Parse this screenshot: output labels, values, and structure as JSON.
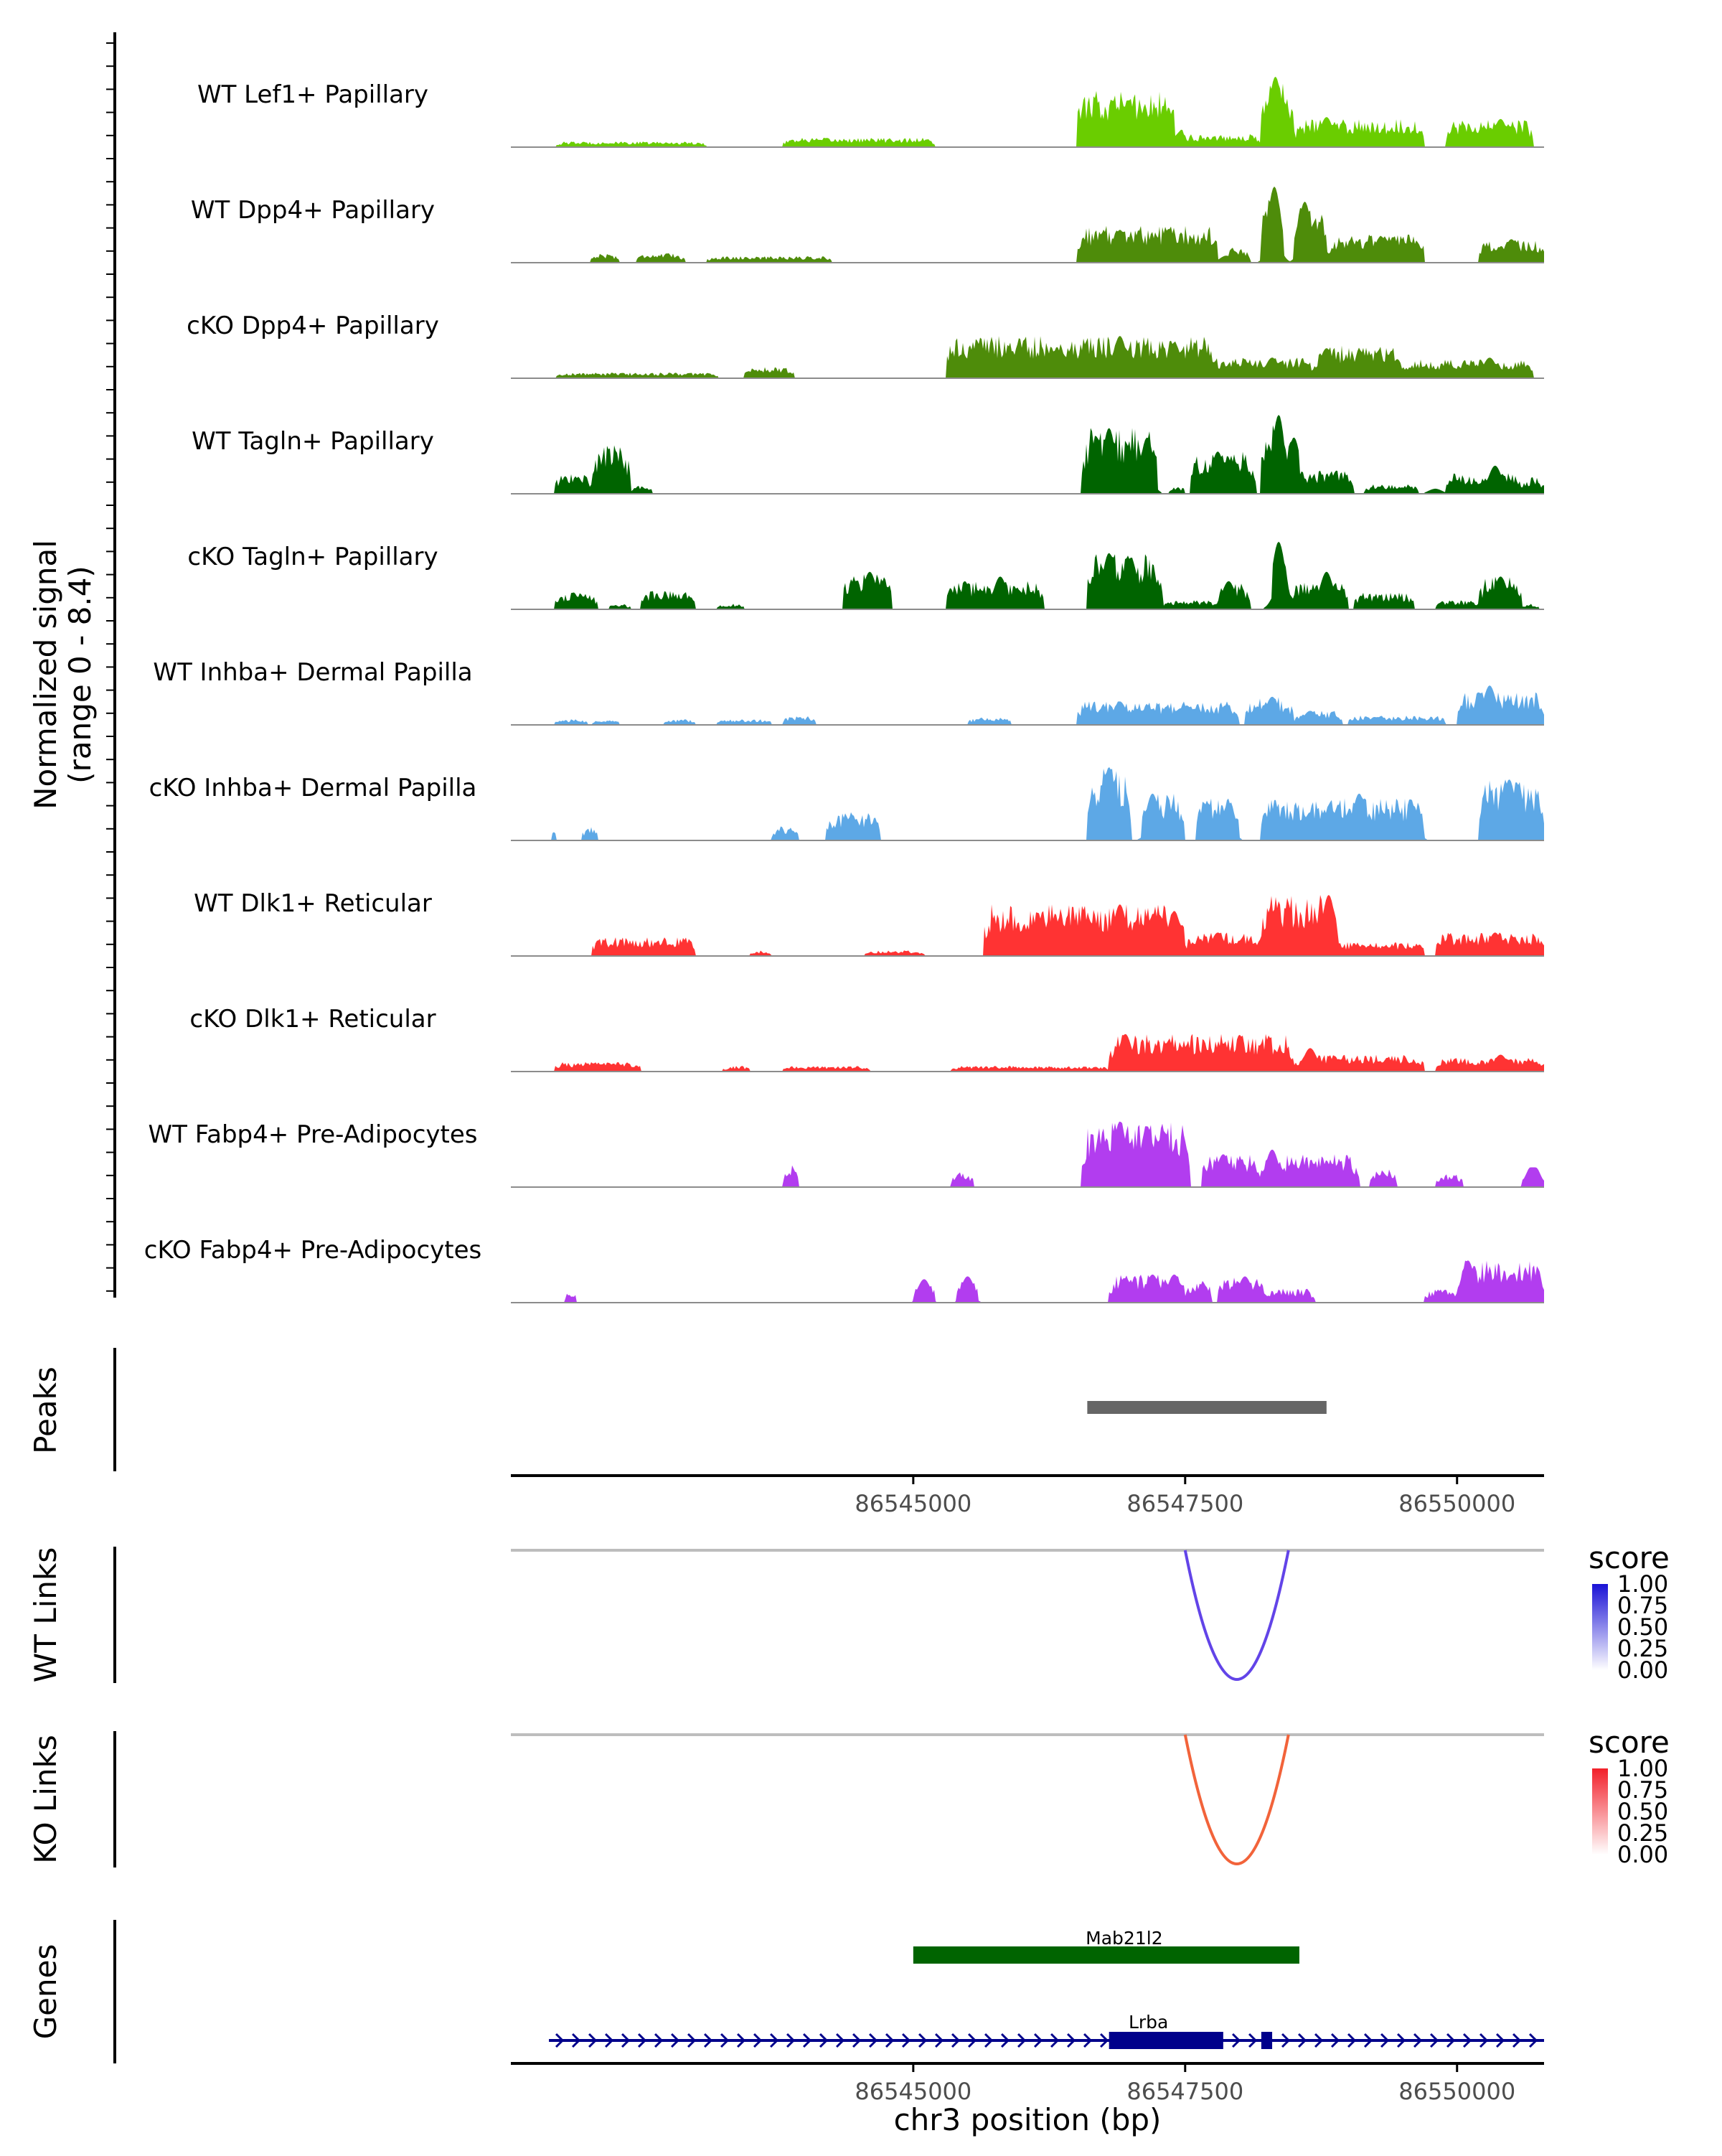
{
  "chart_data": {
    "type": "coverage-track",
    "chromosome": "chr3",
    "xlabel": "chr3 position (bp)",
    "xlim": [
      86541300,
      86550800
    ],
    "x_ticks": [
      86545000,
      86547500,
      86550000
    ],
    "x_tick_labels": [
      "86545000",
      "86547500",
      "86550000"
    ],
    "coverage": {
      "ylabel_line1": "Normalized signal",
      "ylabel_line2": "(range 0 - 8.4)",
      "range": [
        0,
        8.4
      ],
      "tracks": [
        {
          "name": "WT Lef1+ Papillary",
          "color": "#6ACD00",
          "regions": [
            [
              86541720,
              86543100,
              0.6
            ],
            [
              86543800,
              86545200,
              1.0
            ],
            [
              86546500,
              86547400,
              6.0
            ],
            [
              86547400,
              86548200,
              1.4
            ],
            [
              86548200,
              86548500,
              7.5
            ],
            [
              86548500,
              86549700,
              3.0
            ],
            [
              86549900,
              86550700,
              3.0
            ]
          ],
          "peaks": [
            [
              86546980,
              5.0
            ],
            [
              86547400,
              4.0
            ],
            [
              86548330,
              7.5
            ],
            [
              86548800,
              3.2
            ],
            [
              86550400,
              3.0
            ]
          ]
        },
        {
          "name": "WT Dpp4+ Papillary",
          "color": "#4E8C0A",
          "regions": [
            [
              86542030,
              86542300,
              1.0
            ],
            [
              86542450,
              86542900,
              1.0
            ],
            [
              86543100,
              86544250,
              0.7
            ],
            [
              86546500,
              86547800,
              4.0
            ],
            [
              86547900,
              86548100,
              1.5
            ],
            [
              86548200,
              86548400,
              8.1
            ],
            [
              86548500,
              86548800,
              6.5
            ],
            [
              86548800,
              86549700,
              3.0
            ],
            [
              86550200,
              86550800,
              2.5
            ]
          ],
          "peaks": [
            [
              86546900,
              3.5
            ],
            [
              86547350,
              3.6
            ],
            [
              86547880,
              2.5
            ],
            [
              86548320,
              8.1
            ],
            [
              86548600,
              6.5
            ],
            [
              86549300,
              2.8
            ],
            [
              86550500,
              2.5
            ]
          ]
        },
        {
          "name": "cKO Dpp4+ Papillary",
          "color": "#4E8C0A",
          "regions": [
            [
              86541720,
              86543200,
              0.6
            ],
            [
              86543450,
              86543900,
              1.2
            ],
            [
              86545300,
              86547800,
              4.5
            ],
            [
              86547800,
              86548700,
              2.2
            ],
            [
              86548700,
              86549500,
              3.5
            ],
            [
              86549500,
              86550700,
              2.0
            ]
          ],
          "peaks": [
            [
              86546900,
              4.5
            ],
            [
              86547400,
              3.8
            ],
            [
              86548300,
              2.2
            ],
            [
              86548800,
              3.2
            ],
            [
              86550300,
              2.2
            ]
          ]
        },
        {
          "name": "WT Tagln+ Papillary",
          "color": "#006400",
          "regions": [
            [
              86541700,
              86542050,
              2.2
            ],
            [
              86542050,
              86542400,
              5.5
            ],
            [
              86542400,
              86542600,
              0.9
            ],
            [
              86546550,
              86547250,
              7.0
            ],
            [
              86547350,
              86547500,
              0.9
            ],
            [
              86547550,
              86548150,
              4.5
            ],
            [
              86548200,
              86548400,
              8.4
            ],
            [
              86548400,
              86548550,
              6.0
            ],
            [
              86548550,
              86549050,
              2.5
            ],
            [
              86549150,
              86549650,
              1.0
            ],
            [
              86549900,
              86550600,
              2.2
            ],
            [
              86550600,
              86550800,
              1.8
            ]
          ],
          "peaks": [
            [
              86546800,
              7.0
            ],
            [
              86547150,
              6.0
            ],
            [
              86547800,
              4.5
            ],
            [
              86547950,
              3.5
            ],
            [
              86548360,
              8.4
            ],
            [
              86548500,
              6.0
            ],
            [
              86549800,
              1.8
            ],
            [
              86550350,
              3.0
            ]
          ]
        },
        {
          "name": "cKO Tagln+ Papillary",
          "color": "#006400",
          "regions": [
            [
              86541700,
              86542100,
              1.8
            ],
            [
              86542200,
              86542400,
              0.6
            ],
            [
              86542500,
              86543000,
              2.0
            ],
            [
              86543200,
              86543450,
              0.6
            ],
            [
              86544350,
              86544800,
              4.0
            ],
            [
              86545300,
              86546200,
              3.0
            ],
            [
              86546600,
              86547300,
              6.0
            ],
            [
              86547300,
              86547800,
              1.0
            ],
            [
              86547800,
              86548100,
              3.0
            ],
            [
              86548300,
              86548450,
              7.2
            ],
            [
              86548450,
              86549000,
              3.0
            ],
            [
              86549050,
              86549600,
              1.8
            ],
            [
              86549800,
              86550200,
              1.0
            ],
            [
              86550200,
              86550600,
              3.5
            ],
            [
              86550600,
              86550750,
              0.6
            ]
          ],
          "peaks": [
            [
              86544600,
              4.0
            ],
            [
              86545800,
              3.5
            ],
            [
              86546800,
              6.0
            ],
            [
              86547000,
              5.5
            ],
            [
              86547900,
              3.0
            ],
            [
              86548360,
              7.2
            ],
            [
              86548800,
              4.0
            ],
            [
              86550400,
              3.5
            ]
          ]
        },
        {
          "name": "WT Inhba+ Dermal Papilla",
          "color": "#5DA8E6",
          "regions": [
            [
              86541700,
              86542000,
              0.6
            ],
            [
              86542050,
              86542300,
              0.6
            ],
            [
              86542700,
              86543000,
              0.6
            ],
            [
              86543200,
              86543700,
              0.6
            ],
            [
              86543800,
              86544100,
              1.0
            ],
            [
              86545500,
              86545900,
              0.8
            ],
            [
              86546500,
              86548000,
              2.5
            ],
            [
              86548050,
              86548500,
              3.0
            ],
            [
              86548500,
              86548950,
              1.5
            ],
            [
              86549000,
              86549900,
              1.0
            ],
            [
              86550000,
              86550800,
              3.5
            ]
          ],
          "peaks": [
            [
              86546900,
              2.5
            ],
            [
              86547500,
              2.0
            ],
            [
              86548300,
              3.0
            ],
            [
              86548650,
              1.5
            ],
            [
              86550300,
              4.2
            ],
            [
              86550500,
              2.2
            ]
          ]
        },
        {
          "name": "cKO Inhba+ Dermal Papilla",
          "color": "#5DA8E6",
          "regions": [
            [
              86541680,
              86541720,
              1.5
            ],
            [
              86541950,
              86542100,
              1.5
            ],
            [
              86543700,
              86543950,
              1.5
            ],
            [
              86544200,
              86544700,
              3.0
            ],
            [
              86546600,
              86547000,
              7.8
            ],
            [
              86547100,
              86547500,
              5.0
            ],
            [
              86547600,
              86548000,
              4.5
            ],
            [
              86548200,
              86549700,
              4.5
            ],
            [
              86550200,
              86550800,
              6.5
            ]
          ],
          "peaks": [
            [
              86546800,
              7.8
            ],
            [
              86547200,
              5.0
            ],
            [
              86547900,
              4.0
            ],
            [
              86548600,
              2.5
            ],
            [
              86549100,
              5.0
            ],
            [
              86549600,
              3.5
            ],
            [
              86550480,
              6.5
            ]
          ]
        },
        {
          "name": "WT Dlk1+ Reticular",
          "color": "#FF3333",
          "regions": [
            [
              86542050,
              86543000,
              2.0
            ],
            [
              86543500,
              86543700,
              0.6
            ],
            [
              86544550,
              86545100,
              0.6
            ],
            [
              86545650,
              86547500,
              5.5
            ],
            [
              86547500,
              86548200,
              2.5
            ],
            [
              86548200,
              86548900,
              6.5
            ],
            [
              86548900,
              86549700,
              1.5
            ],
            [
              86549800,
              86550800,
              2.5
            ]
          ],
          "peaks": [
            [
              86546900,
              5.5
            ],
            [
              86547400,
              4.8
            ],
            [
              86547800,
              2.5
            ],
            [
              86548250,
              3.0
            ],
            [
              86548820,
              6.5
            ],
            [
              86550350,
              2.5
            ]
          ]
        },
        {
          "name": "cKO Dlk1+ Reticular",
          "color": "#FF3333",
          "regions": [
            [
              86541700,
              86542500,
              1.0
            ],
            [
              86543250,
              86543500,
              0.6
            ],
            [
              86543800,
              86544600,
              0.6
            ],
            [
              86545350,
              86546800,
              0.6
            ],
            [
              86546800,
              86548500,
              4.0
            ],
            [
              86548500,
              86549700,
              1.8
            ],
            [
              86549800,
              86550800,
              1.5
            ]
          ],
          "peaks": [
            [
              86546950,
              4.0
            ],
            [
              86547350,
              3.2
            ],
            [
              86547850,
              3.0
            ],
            [
              86548650,
              2.5
            ],
            [
              86550400,
              1.8
            ]
          ]
        },
        {
          "name": "WT Fabp4+ Pre-Adipocytes",
          "color": "#B23DEF",
          "regions": [
            [
              86543800,
              86543950,
              2.5
            ],
            [
              86545350,
              86545550,
              1.8
            ],
            [
              86546550,
              86547550,
              7.0
            ],
            [
              86547650,
              86548200,
              3.5
            ],
            [
              86548200,
              86549100,
              3.5
            ],
            [
              86549200,
              86549450,
              2.0
            ],
            [
              86549800,
              86550050,
              1.5
            ],
            [
              86550600,
              86550800,
              1.5
            ]
          ],
          "peaks": [
            [
              86546900,
              7.0
            ],
            [
              86547150,
              6.5
            ],
            [
              86547300,
              6.0
            ],
            [
              86547850,
              3.5
            ],
            [
              86548300,
              4.0
            ],
            [
              86548850,
              2.5
            ],
            [
              86550700,
              2.5
            ]
          ]
        },
        {
          "name": "cKO Fabp4+ Pre-Adipocytes",
          "color": "#B23DEF",
          "regions": [
            [
              86541800,
              86541900,
              1.5
            ],
            [
              86545000,
              86545200,
              2.5
            ],
            [
              86545400,
              86545600,
              2.8
            ],
            [
              86546800,
              86547500,
              3.0
            ],
            [
              86547500,
              86547750,
              2.5
            ],
            [
              86547800,
              86548250,
              2.8
            ],
            [
              86548250,
              86548700,
              1.5
            ],
            [
              86549700,
              86550000,
              1.5
            ],
            [
              86550000,
              86550800,
              4.5
            ]
          ],
          "peaks": [
            [
              86545100,
              2.5
            ],
            [
              86545500,
              2.8
            ],
            [
              86547200,
              3.0
            ],
            [
              86547400,
              3.0
            ],
            [
              86548050,
              2.8
            ],
            [
              86550100,
              4.5
            ],
            [
              86550500,
              3.0
            ]
          ]
        }
      ]
    },
    "peaks_track": {
      "label": "Peaks",
      "segments": [
        [
          86546600,
          86548800
        ]
      ],
      "color": "#666666"
    },
    "links": [
      {
        "label": "WT Links",
        "start": 86547500,
        "end": 86548450,
        "score": 1.0,
        "color": "#6244E8",
        "legend": {
          "title": "score",
          "labels": [
            "1.00",
            "0.75",
            "0.50",
            "0.25",
            "0.00"
          ],
          "color_high": "#1A12D6",
          "color_low": "#FFFFFF"
        }
      },
      {
        "label": "KO Links",
        "start": 86547500,
        "end": 86548450,
        "score": 1.0,
        "color": "#F2633A",
        "legend": {
          "title": "score",
          "labels": [
            "1.00",
            "0.75",
            "0.50",
            "0.25",
            "0.00"
          ],
          "color_high": "#F2202A",
          "color_low": "#FFFFFF"
        }
      }
    ],
    "genes": {
      "label": "Genes",
      "items": [
        {
          "name": "Mab21l2",
          "start": 86545000,
          "end": 86548550,
          "color": "#006400"
        },
        {
          "name": "Lrba",
          "start": 86541650,
          "end": 86550800,
          "color": "#00008B",
          "exons": [
            [
              86546800,
              86547850
            ],
            [
              86548200,
              86548300
            ]
          ]
        }
      ]
    }
  }
}
